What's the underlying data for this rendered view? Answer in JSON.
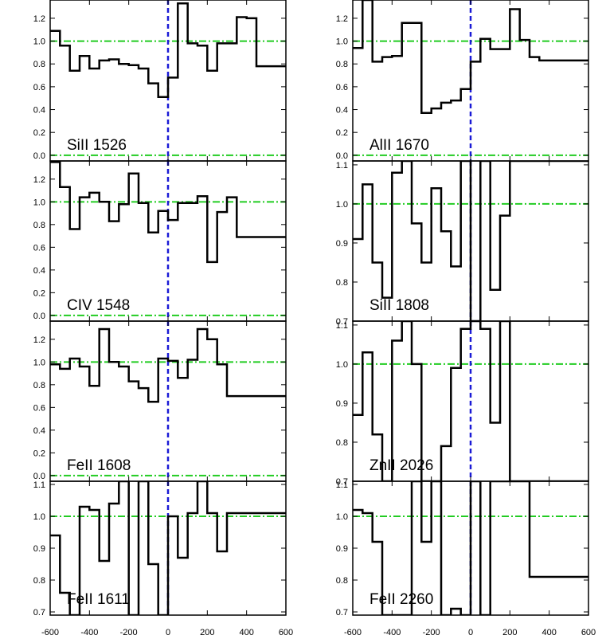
{
  "colors": {
    "spectrum": "#000000",
    "continuum_line": "#22cc22",
    "zero_line": "#22cc22",
    "velocity_zero": "#1a1ad6"
  },
  "chart_data": [
    {
      "type": "line",
      "title": "SiII 1526",
      "xlim": [
        -600,
        600
      ],
      "ylim": [
        -0.05,
        1.36
      ],
      "yticks": [
        0.0,
        0.2,
        0.4,
        0.6,
        0.8,
        1.0,
        1.2
      ],
      "ytick_labels": [
        "0.0",
        "0.2",
        "0.4",
        "0.6",
        "0.8",
        "1.0",
        "1.2"
      ],
      "hlines": [
        1.0,
        0.0
      ],
      "vline": 0,
      "x": [
        -600,
        -550,
        -500,
        -450,
        -400,
        -350,
        -300,
        -250,
        -200,
        -150,
        -100,
        -50,
        0,
        50,
        100,
        150,
        200,
        250,
        300,
        350,
        400,
        450,
        500,
        550
      ],
      "y": [
        1.09,
        0.96,
        0.74,
        0.87,
        0.76,
        0.83,
        0.84,
        0.8,
        0.79,
        0.76,
        0.63,
        0.51,
        0.68,
        1.33,
        0.98,
        0.96,
        0.74,
        0.98,
        0.98,
        1.21,
        1.2,
        0.78,
        0.78,
        0.78
      ]
    },
    {
      "type": "line",
      "title": "AlII 1670",
      "xlim": [
        -600,
        600
      ],
      "ylim": [
        -0.05,
        1.36
      ],
      "yticks": [
        0.0,
        0.2,
        0.4,
        0.6,
        0.8,
        1.0,
        1.2
      ],
      "ytick_labels": [
        "0.0",
        "0.2",
        "0.4",
        "0.6",
        "0.8",
        "1.0",
        "1.2"
      ],
      "hlines": [
        1.0,
        0.0
      ],
      "vline": 0,
      "x": [
        -600,
        -550,
        -500,
        -450,
        -400,
        -350,
        -300,
        -250,
        -200,
        -150,
        -100,
        -50,
        0,
        50,
        100,
        150,
        200,
        250,
        300,
        350,
        400,
        450,
        500,
        550
      ],
      "y": [
        0.94,
        1.36,
        0.82,
        0.86,
        0.87,
        1.16,
        1.16,
        0.37,
        0.41,
        0.46,
        0.48,
        0.58,
        0.82,
        1.02,
        0.93,
        0.93,
        1.28,
        1.01,
        0.86,
        0.83,
        0.83,
        0.83,
        0.83,
        0.83
      ]
    },
    {
      "type": "line",
      "title": "CIV 1548",
      "xlim": [
        -600,
        600
      ],
      "ylim": [
        -0.05,
        1.36
      ],
      "yticks": [
        0.0,
        0.2,
        0.4,
        0.6,
        0.8,
        1.0,
        1.2
      ],
      "ytick_labels": [
        "0.0",
        "0.2",
        "0.4",
        "0.6",
        "0.8",
        "1.0",
        "1.2"
      ],
      "hlines": [
        1.0,
        0.0
      ],
      "vline": 0,
      "x": [
        -600,
        -550,
        -500,
        -450,
        -400,
        -350,
        -300,
        -250,
        -200,
        -150,
        -100,
        -50,
        0,
        50,
        100,
        150,
        200,
        250,
        300,
        350,
        400,
        450,
        500,
        550
      ],
      "y": [
        1.35,
        1.13,
        0.76,
        1.04,
        1.08,
        1.0,
        0.83,
        0.98,
        1.25,
        0.99,
        0.73,
        0.92,
        0.84,
        0.99,
        0.99,
        1.05,
        0.47,
        0.91,
        1.04,
        0.69,
        0.69,
        0.69,
        0.69,
        0.69
      ]
    },
    {
      "type": "line",
      "title": "SiII 1808",
      "xlim": [
        -600,
        600
      ],
      "ylim": [
        0.7,
        1.11
      ],
      "yticks": [
        0.7,
        0.8,
        0.9,
        1.0,
        1.1
      ],
      "ytick_labels": [
        "0.7",
        "0.8",
        "0.9",
        "1.0",
        "1.1"
      ],
      "hlines": [
        1.0
      ],
      "vline": 0,
      "x": [
        -600,
        -550,
        -500,
        -450,
        -400,
        -350,
        -300,
        -250,
        -200,
        -150,
        -100,
        -50,
        0,
        50,
        100,
        150,
        200,
        250,
        300,
        350,
        400,
        450,
        500,
        550
      ],
      "y": [
        0.91,
        1.05,
        0.85,
        0.76,
        1.08,
        1.11,
        0.95,
        0.85,
        1.04,
        0.93,
        0.84,
        1.11,
        0.69,
        1.11,
        0.78,
        0.97,
        1.11,
        1.11,
        1.11,
        1.11,
        1.11,
        1.11,
        1.11,
        1.11
      ]
    },
    {
      "type": "line",
      "title": "FeII 1608",
      "xlim": [
        -600,
        600
      ],
      "ylim": [
        -0.05,
        1.36
      ],
      "yticks": [
        0.0,
        0.2,
        0.4,
        0.6,
        0.8,
        1.0,
        1.2
      ],
      "ytick_labels": [
        "0.0",
        "0.2",
        "0.4",
        "0.6",
        "0.8",
        "1.0",
        "1.2"
      ],
      "hlines": [
        1.0,
        0.0
      ],
      "vline": 0,
      "x": [
        -600,
        -550,
        -500,
        -450,
        -400,
        -350,
        -300,
        -250,
        -200,
        -150,
        -100,
        -50,
        0,
        50,
        100,
        150,
        200,
        250,
        300,
        350,
        400,
        450,
        500,
        550
      ],
      "y": [
        0.98,
        0.94,
        1.03,
        0.96,
        0.79,
        1.29,
        1.0,
        0.96,
        0.83,
        0.77,
        0.65,
        1.03,
        1.01,
        0.86,
        1.02,
        1.29,
        1.2,
        0.98,
        0.7,
        0.7,
        0.7,
        0.7,
        0.7,
        0.7
      ]
    },
    {
      "type": "line",
      "title": "ZnII 2026",
      "xlim": [
        -600,
        600
      ],
      "ylim": [
        0.7,
        1.11
      ],
      "yticks": [
        0.7,
        0.8,
        0.9,
        1.0,
        1.1
      ],
      "ytick_labels": [
        "0.7",
        "0.8",
        "0.9",
        "1.0",
        "1.1"
      ],
      "hlines": [
        1.0
      ],
      "vline": 0,
      "x": [
        -600,
        -550,
        -500,
        -450,
        -400,
        -350,
        -300,
        -250,
        -200,
        -150,
        -100,
        -50,
        0,
        50,
        100,
        150,
        200,
        250,
        300,
        350,
        400,
        450,
        500,
        550
      ],
      "y": [
        0.87,
        1.03,
        0.82,
        0.69,
        1.06,
        1.11,
        1.0,
        0.69,
        0.69,
        0.79,
        0.99,
        1.09,
        1.11,
        1.09,
        0.85,
        1.11,
        0.69,
        0.69,
        0.69,
        0.69,
        0.69,
        0.69,
        0.69,
        0.69
      ]
    },
    {
      "type": "line",
      "title": "FeII 1611",
      "xlim": [
        -600,
        600
      ],
      "ylim": [
        0.69,
        1.11
      ],
      "yticks": [
        0.7,
        0.8,
        0.9,
        1.0,
        1.1
      ],
      "ytick_labels": [
        "0.7",
        "0.8",
        "0.9",
        "1.0",
        "1.1"
      ],
      "hlines": [
        1.0
      ],
      "vline": 0,
      "x": [
        -600,
        -550,
        -500,
        -450,
        -400,
        -350,
        -300,
        -250,
        -200,
        -150,
        -100,
        -50,
        0,
        50,
        100,
        150,
        200,
        250,
        300,
        350,
        400,
        450,
        500,
        550
      ],
      "y": [
        0.94,
        0.76,
        0.69,
        1.03,
        1.02,
        0.86,
        1.04,
        1.11,
        0.69,
        1.11,
        0.85,
        0.69,
        1.0,
        0.87,
        1.01,
        1.11,
        1.01,
        0.89,
        1.01,
        1.01,
        1.01,
        1.01,
        1.01,
        1.01
      ]
    },
    {
      "type": "line",
      "title": "FeII 2260",
      "xlim": [
        -600,
        600
      ],
      "ylim": [
        0.69,
        1.11
      ],
      "yticks": [
        0.7,
        0.8,
        0.9,
        1.0,
        1.1
      ],
      "ytick_labels": [
        "0.7",
        "0.8",
        "0.9",
        "1.0",
        "1.1"
      ],
      "hlines": [
        1.0
      ],
      "vline": 0,
      "x": [
        -600,
        -550,
        -500,
        -450,
        -400,
        -350,
        -300,
        -250,
        -200,
        -150,
        -100,
        -50,
        0,
        50,
        100,
        150,
        200,
        250,
        300,
        350,
        400,
        450,
        500,
        550
      ],
      "y": [
        1.02,
        1.01,
        0.92,
        0.69,
        0.69,
        0.69,
        1.11,
        0.92,
        1.11,
        0.69,
        0.71,
        0.69,
        1.11,
        0.69,
        1.11,
        1.11,
        1.11,
        1.11,
        0.81,
        0.81,
        0.81,
        0.81,
        0.81,
        0.81
      ]
    }
  ],
  "x_axis": {
    "ticks": [
      -600,
      -400,
      -200,
      0,
      200,
      400,
      600
    ],
    "tick_labels": [
      "-600",
      "-400",
      "-200",
      "0",
      "200",
      "400",
      "600"
    ]
  }
}
